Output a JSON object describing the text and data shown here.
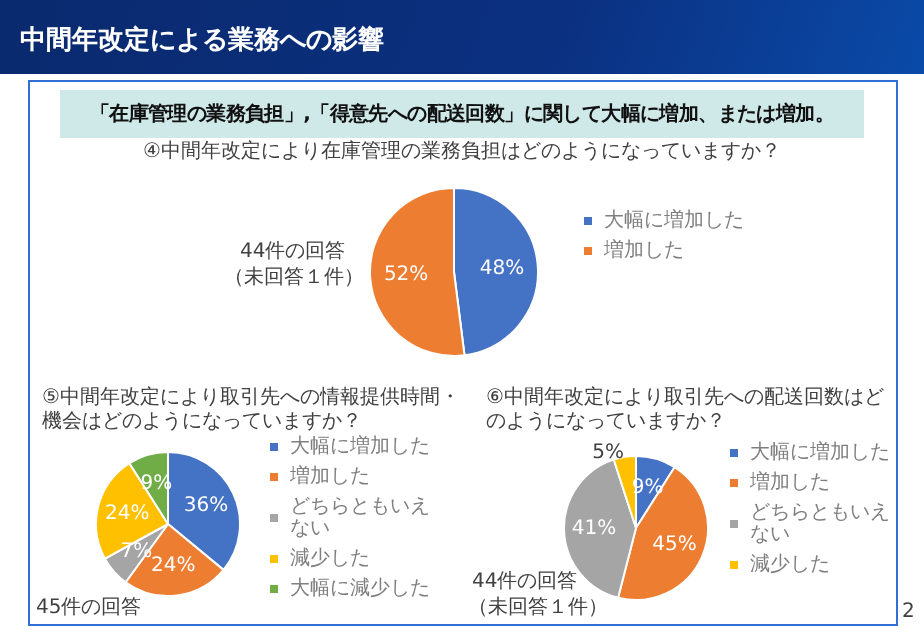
{
  "chart_data": [
    {
      "type": "pie",
      "title": "中間年改定による業務への影響",
      "subtitle": "「在庫管理の業務負担」,「得意先への配送回数」に関して大幅に増加、または増加。",
      "annotations": [
        "④中間年改定により在庫管理の業務負担はどのようになっていますか？",
        "44件の回答",
        "（未回答１件）"
      ],
      "categories": [
        "大幅に増加した",
        "増加した"
      ],
      "values": [
        48,
        52
      ],
      "colors": [
        "#4472c4",
        "#ed7d31"
      ],
      "value_labels": [
        "48%",
        "52%"
      ],
      "legend": "right"
    },
    {
      "type": "pie",
      "title": "⑤中間年改定により取引先への情報提供時間・機会はどのようになっていますか？",
      "annotations": [
        "45件の回答"
      ],
      "categories": [
        "大幅に増加した",
        "増加した",
        "どちらともいえない",
        "減少した",
        "大幅に減少した"
      ],
      "values": [
        36,
        24,
        7,
        24,
        9
      ],
      "colors": [
        "#4472c4",
        "#ed7d31",
        "#a5a5a5",
        "#ffc000",
        "#70ad47"
      ],
      "value_labels": [
        "36%",
        "24%",
        "7%",
        "24%",
        "9%"
      ],
      "legend": "right"
    },
    {
      "type": "pie",
      "title": "⑥中間年改定により取引先への配送回数はどのようになっていますか？",
      "annotations": [
        "44件の回答",
        "（未回答１件）",
        "2"
      ],
      "categories": [
        "大幅に増加した",
        "増加した",
        "どちらともいえない",
        "減少した"
      ],
      "values": [
        9,
        45,
        41,
        5
      ],
      "colors": [
        "#4472c4",
        "#ed7d31",
        "#a5a5a5",
        "#ffc000"
      ],
      "value_labels": [
        "9%",
        "45%",
        "41%",
        "5%"
      ],
      "legend": "right"
    }
  ]
}
